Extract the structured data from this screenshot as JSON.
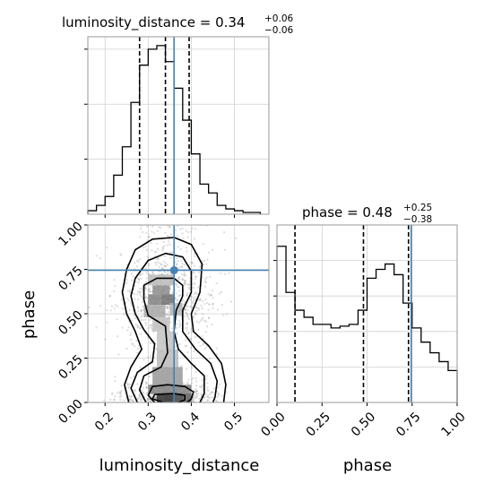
{
  "chart_data": [
    {
      "type": "histogram",
      "panel": "luminosity_distance marginal",
      "title": {
        "param": "luminosity_distance",
        "median": "0.34",
        "plus": "+0.06",
        "minus": "−0.06"
      },
      "xlim": [
        0.16,
        0.58
      ],
      "x_ticks": [
        0.2,
        0.3,
        0.4,
        0.5
      ],
      "bin_edges": [
        0.16,
        0.18,
        0.2,
        0.22,
        0.24,
        0.26,
        0.28,
        0.3,
        0.32,
        0.34,
        0.36,
        0.38,
        0.4,
        0.42,
        0.44,
        0.46,
        0.48,
        0.5,
        0.52,
        0.54,
        0.56
      ],
      "counts": [
        0.02,
        0.05,
        0.1,
        0.22,
        0.38,
        0.63,
        0.84,
        0.93,
        0.95,
        0.86,
        0.71,
        0.53,
        0.34,
        0.17,
        0.12,
        0.05,
        0.03,
        0.02,
        0.01,
        0.01
      ],
      "quantiles": [
        0.28,
        0.34,
        0.395
      ],
      "truth": 0.36
    },
    {
      "type": "histogram",
      "panel": "phase marginal",
      "title": {
        "param": "phase",
        "median": "0.48",
        "plus": "+0.25",
        "minus": "−0.38"
      },
      "xlim": [
        0.0,
        1.0
      ],
      "x_ticks": [
        "0.00",
        "0.25",
        "0.50",
        "0.75",
        "1.00"
      ],
      "bin_edges": [
        0.0,
        0.05,
        0.1,
        0.15,
        0.2,
        0.25,
        0.3,
        0.35,
        0.4,
        0.45,
        0.5,
        0.55,
        0.6,
        0.65,
        0.7,
        0.75,
        0.8,
        0.85,
        0.9,
        0.95,
        1.0
      ],
      "counts": [
        0.88,
        0.62,
        0.52,
        0.48,
        0.44,
        0.44,
        0.42,
        0.43,
        0.44,
        0.52,
        0.7,
        0.75,
        0.78,
        0.72,
        0.56,
        0.42,
        0.34,
        0.28,
        0.23,
        0.18
      ],
      "quantiles": [
        0.1,
        0.48,
        0.73
      ],
      "truth": 0.745
    },
    {
      "type": "density2d",
      "panel": "phase vs luminosity_distance",
      "xlabel": "luminosity_distance",
      "ylabel": "phase",
      "xlim": [
        0.16,
        0.58
      ],
      "ylim": [
        0.0,
        1.0
      ],
      "x_ticks": [
        0.2,
        0.3,
        0.4,
        0.5
      ],
      "y_ticks": [
        "0.00",
        "0.25",
        "0.50",
        "0.75",
        "1.00"
      ],
      "truth": {
        "x": 0.36,
        "y": 0.745
      },
      "density_cells": [
        {
          "x": 0.3,
          "y": 0.55,
          "w": 0.03,
          "h": 0.06,
          "v": 0.55
        },
        {
          "x": 0.33,
          "y": 0.55,
          "w": 0.03,
          "h": 0.06,
          "v": 0.62
        },
        {
          "x": 0.31,
          "y": 0.61,
          "w": 0.04,
          "h": 0.05,
          "v": 0.5
        },
        {
          "x": 0.29,
          "y": 0.48,
          "w": 0.05,
          "h": 0.07,
          "v": 0.38
        },
        {
          "x": 0.35,
          "y": 0.49,
          "w": 0.03,
          "h": 0.07,
          "v": 0.32
        },
        {
          "x": 0.3,
          "y": 0.66,
          "w": 0.06,
          "h": 0.06,
          "v": 0.3
        },
        {
          "x": 0.31,
          "y": 0.4,
          "w": 0.04,
          "h": 0.08,
          "v": 0.28
        },
        {
          "x": 0.32,
          "y": 0.3,
          "w": 0.04,
          "h": 0.1,
          "v": 0.26
        },
        {
          "x": 0.32,
          "y": 0.2,
          "w": 0.05,
          "h": 0.1,
          "v": 0.3
        },
        {
          "x": 0.31,
          "y": 0.1,
          "w": 0.07,
          "h": 0.1,
          "v": 0.45
        },
        {
          "x": 0.32,
          "y": 0.0,
          "w": 0.06,
          "h": 0.05,
          "v": 0.9
        },
        {
          "x": 0.3,
          "y": 0.05,
          "w": 0.1,
          "h": 0.05,
          "v": 0.55
        },
        {
          "x": 0.36,
          "y": 0.0,
          "w": 0.04,
          "h": 0.05,
          "v": 0.7
        }
      ],
      "contours": [
        [
          [
            0.335,
            0.0
          ],
          [
            0.31,
            0.02
          ],
          [
            0.315,
            0.045
          ],
          [
            0.36,
            0.05
          ],
          [
            0.385,
            0.04
          ],
          [
            0.385,
            0.015
          ],
          [
            0.37,
            0.0
          ]
        ],
        [
          [
            0.315,
            0.0
          ],
          [
            0.3,
            0.04
          ],
          [
            0.31,
            0.09
          ],
          [
            0.345,
            0.1
          ],
          [
            0.385,
            0.09
          ],
          [
            0.405,
            0.06
          ],
          [
            0.4,
            0.02
          ],
          [
            0.39,
            0.0
          ]
        ],
        [
          [
            0.295,
            0.0
          ],
          [
            0.28,
            0.07
          ],
          [
            0.29,
            0.15
          ],
          [
            0.33,
            0.2
          ],
          [
            0.345,
            0.28
          ],
          [
            0.34,
            0.43
          ],
          [
            0.3,
            0.49
          ],
          [
            0.29,
            0.58
          ],
          [
            0.29,
            0.66
          ],
          [
            0.32,
            0.7
          ],
          [
            0.36,
            0.7
          ],
          [
            0.38,
            0.66
          ],
          [
            0.38,
            0.6
          ],
          [
            0.365,
            0.52
          ],
          [
            0.36,
            0.4
          ],
          [
            0.37,
            0.3
          ],
          [
            0.4,
            0.22
          ],
          [
            0.43,
            0.15
          ],
          [
            0.43,
            0.05
          ],
          [
            0.42,
            0.0
          ]
        ],
        [
          [
            0.275,
            0.0
          ],
          [
            0.26,
            0.08
          ],
          [
            0.275,
            0.17
          ],
          [
            0.31,
            0.23
          ],
          [
            0.315,
            0.33
          ],
          [
            0.29,
            0.41
          ],
          [
            0.27,
            0.5
          ],
          [
            0.26,
            0.6
          ],
          [
            0.27,
            0.7
          ],
          [
            0.3,
            0.8
          ],
          [
            0.34,
            0.84
          ],
          [
            0.38,
            0.82
          ],
          [
            0.4,
            0.74
          ],
          [
            0.4,
            0.62
          ],
          [
            0.38,
            0.52
          ],
          [
            0.38,
            0.4
          ],
          [
            0.41,
            0.3
          ],
          [
            0.445,
            0.22
          ],
          [
            0.46,
            0.12
          ],
          [
            0.455,
            0.03
          ],
          [
            0.45,
            0.0
          ]
        ],
        [
          [
            0.255,
            0.0
          ],
          [
            0.245,
            0.1
          ],
          [
            0.26,
            0.2
          ],
          [
            0.285,
            0.3
          ],
          [
            0.27,
            0.4
          ],
          [
            0.25,
            0.5
          ],
          [
            0.24,
            0.62
          ],
          [
            0.25,
            0.75
          ],
          [
            0.27,
            0.86
          ],
          [
            0.31,
            0.92
          ],
          [
            0.36,
            0.93
          ],
          [
            0.4,
            0.89
          ],
          [
            0.425,
            0.78
          ],
          [
            0.42,
            0.62
          ],
          [
            0.4,
            0.5
          ],
          [
            0.405,
            0.4
          ],
          [
            0.44,
            0.32
          ],
          [
            0.47,
            0.22
          ],
          [
            0.48,
            0.1
          ],
          [
            0.475,
            0.0
          ]
        ]
      ]
    }
  ]
}
